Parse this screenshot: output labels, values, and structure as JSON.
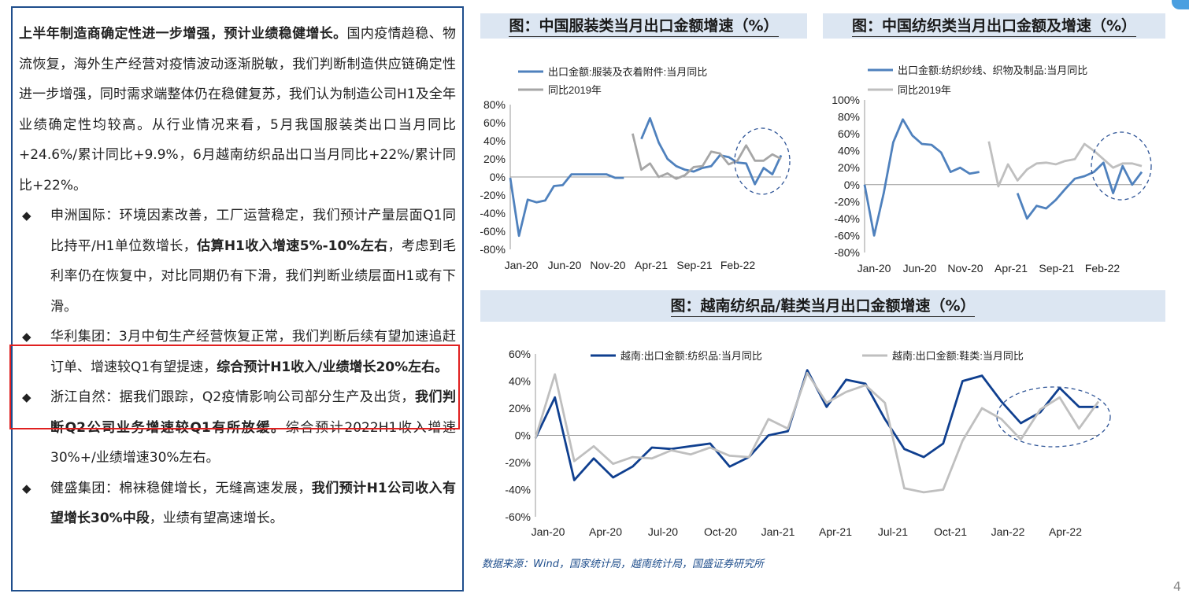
{
  "left": {
    "intro_bold": "上半年制造商确定性进一步增强，预计业绩稳健增长。",
    "intro_rest": "国内疫情趋稳、物流恢复，海外生产经营对疫情波动逐渐脱敏，我们判断制造供应链确定性进一步增强，同时需求端整体仍在稳健复苏，我们认为制造公司H1及全年业绩确定性均较高。从行业情况来看，5月我国服装类出口当月同比+24.6%/累计同比+9.9%，6月越南纺织品出口当月同比+22%/累计同比+22%。",
    "bullet_marker": "◆",
    "b1_a": "申洲国际：环境因素改善，工厂运营稳定，我们预计产量层面Q1同比持平/H1单位数增长，",
    "b1_bold": "估算H1收入增速5%-10%左右",
    "b1_c": "，考虑到毛利率仍在恢复中，对比同期仍有下滑，我们判断业绩层面H1或有下滑。",
    "b2_a": "华利集团：3月中旬生产经营恢复正常，我们判断后续有望加速追赶订单、增速较Q1有望提速，",
    "b2_bold": "综合预计H1收入/业绩增长20%左右。",
    "b3_a": "浙江自然：据我们跟踪，Q2疫情影响公司部分生产及出货，",
    "b3_bold": "我们判断Q2公司业务增速较Q1有所放缓。",
    "b3_c": "综合预计2022H1收入增速30%+/业绩增速30%左右。",
    "b4_a": "健盛集团：棉袜稳健增长，无缝高速发展，",
    "b4_bold": "我们预计H1公司收入有望增长30%中段",
    "b4_c": "，业绩有望高速增长。"
  },
  "footer": {
    "source": "数据来源：Wind，国家统计局，越南统计局，国盛证券研究所",
    "page": "4"
  },
  "chart_data": [
    {
      "type": "line",
      "title": "图：中国服装类当月出口金额增速（%）",
      "xtick_labels": [
        "Jan-20",
        "Jun-20",
        "Nov-20",
        "Apr-21",
        "Sep-21",
        "Feb-22"
      ],
      "ytick_labels": [
        "80%",
        "60%",
        "40%",
        "20%",
        "0%",
        "-20%",
        "-40%",
        "-60%",
        "-80%"
      ],
      "ylim": [
        -80,
        80
      ],
      "series": [
        {
          "name": "出口金额:服装及衣着附件:当月同比",
          "color": "#4f81bd",
          "values": [
            -1,
            -65,
            -25,
            -28,
            -26,
            -10,
            -9,
            3,
            3,
            3,
            3,
            3,
            -1,
            -1,
            null,
            42,
            65,
            38,
            20,
            12,
            8,
            6,
            10,
            12,
            24,
            22,
            16,
            15,
            -8,
            10,
            3,
            24
          ]
        },
        {
          "name": "同比2019年",
          "color": "#a6a6a6",
          "values": [
            null,
            null,
            null,
            null,
            null,
            null,
            null,
            null,
            null,
            null,
            null,
            null,
            null,
            null,
            48,
            8,
            15,
            0,
            4,
            -2,
            2,
            11,
            12,
            28,
            26,
            14,
            18,
            35,
            18,
            18,
            25,
            20
          ]
        }
      ]
    },
    {
      "type": "line",
      "title": "图：中国纺织类当月出口金额及增速（%）",
      "xtick_labels": [
        "Jan-20",
        "Jun-20",
        "Nov-20",
        "Apr-21",
        "Sep-21",
        "Feb-22"
      ],
      "ytick_labels": [
        "100%",
        "80%",
        "60%",
        "40%",
        "20%",
        "0%",
        "-20%",
        "-40%",
        "-60%",
        "-80%"
      ],
      "ylim": [
        -80,
        100
      ],
      "series": [
        {
          "name": "出口金额:纺织纱线、织物及制品:当月同比",
          "color": "#4f81bd",
          "values": [
            0,
            -60,
            -10,
            50,
            77,
            58,
            48,
            47,
            38,
            15,
            20,
            13,
            15,
            null,
            null,
            null,
            -10,
            -40,
            -25,
            -28,
            -18,
            -5,
            7,
            10,
            15,
            26,
            -10,
            22,
            0,
            15
          ]
        },
        {
          "name": "同比2019年",
          "color": "#bfbfbf",
          "values": [
            null,
            null,
            null,
            null,
            null,
            null,
            null,
            null,
            null,
            null,
            null,
            null,
            null,
            51,
            -2,
            24,
            5,
            18,
            25,
            26,
            24,
            28,
            30,
            48,
            40,
            30,
            20,
            25,
            25,
            22
          ]
        }
      ]
    },
    {
      "type": "line",
      "title": "图：越南纺织品/鞋类当月出口金额增速（%）",
      "xtick_labels": [
        "Jan-20",
        "Apr-20",
        "Jul-20",
        "Oct-20",
        "Jan-21",
        "Apr-21",
        "Jul-21",
        "Oct-21",
        "Jan-22",
        "Apr-22"
      ],
      "ytick_labels": [
        "60%",
        "40%",
        "20%",
        "0%",
        "-20%",
        "-40%",
        "-60%"
      ],
      "ylim": [
        -60,
        60
      ],
      "series": [
        {
          "name": "越南:出口金额:纺织品:当月同比",
          "color": "#0f3f8f",
          "values": [
            -2,
            28,
            -33,
            -17,
            -31,
            -23,
            -9,
            -10,
            -8,
            -6,
            -23,
            -16,
            0,
            3,
            48,
            21,
            41,
            38,
            12,
            -10,
            -16,
            -6,
            40,
            44,
            25,
            9,
            17,
            35,
            21,
            21
          ]
        },
        {
          "name": "越南:出口金额:鞋类:当月同比",
          "color": "#bfbfbf",
          "values": [
            -2,
            45,
            -19,
            -8,
            -21,
            -16,
            -17,
            -11,
            -14,
            -9,
            -15,
            -16,
            12,
            5,
            46,
            24,
            32,
            37,
            24,
            -39,
            -42,
            -40,
            -4,
            20,
            12,
            -3,
            19,
            28,
            5,
            25
          ]
        }
      ]
    }
  ]
}
